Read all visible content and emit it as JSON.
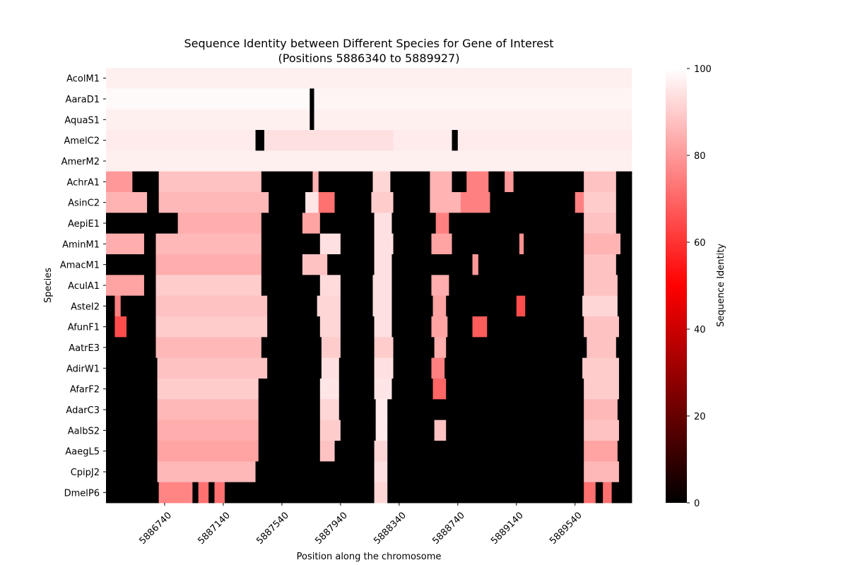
{
  "chart_data": {
    "type": "heatmap",
    "title_line1": "Sequence Identity between Different Species for Gene of Interest",
    "title_line2": "(Positions 5886340 to 5889927)",
    "xlabel": "Position along the chromosome",
    "ylabel": "Species",
    "colorbar_label": "Sequence Identity",
    "x_range": [
      5886340,
      5889927
    ],
    "x_ticks": [
      5886740,
      5887140,
      5887540,
      5887940,
      5888340,
      5888740,
      5889140,
      5889540
    ],
    "x_tick_labels": [
      "5886740",
      "5887140",
      "5887540",
      "5887940",
      "5888340",
      "5888740",
      "5889140",
      "5889540"
    ],
    "colorbar_range": [
      0,
      100
    ],
    "colorbar_ticks": [
      0,
      20,
      40,
      60,
      80,
      100
    ],
    "colorbar_tick_labels": [
      "0",
      "20",
      "40",
      "60",
      "80",
      "100"
    ],
    "colormap": [
      "#000000",
      "#ff0000",
      "#ffffff"
    ],
    "species": [
      "AcolM1",
      "AaraD1",
      "AquaS1",
      "AmelC2",
      "AmerM2",
      "AchrA1",
      "AsinC2",
      "AepiE1",
      "AminM1",
      "AmacM1",
      "AculA1",
      "AstеI2",
      "AfunF1",
      "AatrE3",
      "AdirW1",
      "AfarF2",
      "AdarC3",
      "AalbS2",
      "AaegL5",
      "CpipJ2",
      "DmelP6"
    ],
    "rows": [
      {
        "species": "AcolM1",
        "segments": [
          [
            5886340,
            5889927,
            97
          ]
        ]
      },
      {
        "species": "AaraD1",
        "segments": [
          [
            5886340,
            5887730,
            99
          ],
          [
            5887730,
            5887760,
            0
          ],
          [
            5887760,
            5889927,
            98
          ]
        ]
      },
      {
        "species": "AquaS1",
        "segments": [
          [
            5886340,
            5887730,
            97
          ],
          [
            5887730,
            5887760,
            0
          ],
          [
            5887760,
            5889927,
            97
          ]
        ]
      },
      {
        "species": "AmelC2",
        "segments": [
          [
            5886340,
            5887360,
            96
          ],
          [
            5886340,
            5886340,
            96
          ],
          [
            5887360,
            5887420,
            0
          ],
          [
            5887420,
            5888300,
            94
          ],
          [
            5888300,
            5888700,
            96
          ],
          [
            5888700,
            5888740,
            0
          ],
          [
            5888740,
            5889927,
            96
          ]
        ]
      },
      {
        "species": "AmerM2",
        "segments": [
          [
            5886340,
            5889927,
            97
          ]
        ]
      },
      {
        "species": "AchrA1",
        "segments": [
          [
            5886340,
            5886520,
            80
          ],
          [
            5886520,
            5886700,
            0
          ],
          [
            5886700,
            5887400,
            88
          ],
          [
            5887400,
            5887750,
            0
          ],
          [
            5887750,
            5887790,
            85
          ],
          [
            5887790,
            5888160,
            0
          ],
          [
            5888160,
            5888280,
            92
          ],
          [
            5888280,
            5888550,
            0
          ],
          [
            5888550,
            5888700,
            85
          ],
          [
            5888700,
            5888800,
            0
          ],
          [
            5888800,
            5888950,
            75
          ],
          [
            5888950,
            5889060,
            0
          ],
          [
            5889060,
            5889120,
            80
          ],
          [
            5889120,
            5889600,
            0
          ],
          [
            5889600,
            5889820,
            88
          ],
          [
            5889820,
            5889927,
            0
          ]
        ]
      },
      {
        "species": "AsinC2",
        "segments": [
          [
            5886340,
            5886620,
            85
          ],
          [
            5886620,
            5886700,
            0
          ],
          [
            5886700,
            5887450,
            86
          ],
          [
            5887450,
            5887700,
            0
          ],
          [
            5887700,
            5887790,
            95
          ],
          [
            5887790,
            5887900,
            72
          ],
          [
            5887900,
            5888150,
            0
          ],
          [
            5888150,
            5888300,
            90
          ],
          [
            5888300,
            5888550,
            0
          ],
          [
            5888550,
            5888760,
            85
          ],
          [
            5888760,
            5888960,
            75
          ],
          [
            5888960,
            5889540,
            0
          ],
          [
            5889540,
            5889600,
            75
          ],
          [
            5889600,
            5889820,
            90
          ],
          [
            5889820,
            5889927,
            0
          ]
        ]
      },
      {
        "species": "AepiE1",
        "segments": [
          [
            5886340,
            5886830,
            0
          ],
          [
            5886830,
            5887400,
            84
          ],
          [
            5887400,
            5887680,
            0
          ],
          [
            5887680,
            5887800,
            82
          ],
          [
            5887800,
            5888170,
            0
          ],
          [
            5888170,
            5888290,
            94
          ],
          [
            5888290,
            5888590,
            0
          ],
          [
            5888590,
            5888680,
            75
          ],
          [
            5888680,
            5889600,
            0
          ],
          [
            5889600,
            5889820,
            88
          ],
          [
            5889820,
            5889927,
            0
          ]
        ]
      },
      {
        "species": "AminM1",
        "segments": [
          [
            5886340,
            5886600,
            84
          ],
          [
            5886600,
            5886680,
            0
          ],
          [
            5886680,
            5887400,
            86
          ],
          [
            5887400,
            5887800,
            0
          ],
          [
            5887800,
            5887940,
            94
          ],
          [
            5887940,
            5888170,
            0
          ],
          [
            5888170,
            5888300,
            94
          ],
          [
            5888300,
            5888560,
            0
          ],
          [
            5888560,
            5888700,
            82
          ],
          [
            5888700,
            5889160,
            0
          ],
          [
            5889160,
            5889190,
            78
          ],
          [
            5889190,
            5889600,
            0
          ],
          [
            5889600,
            5889850,
            85
          ],
          [
            5889850,
            5889927,
            0
          ]
        ]
      },
      {
        "species": "AmacM1",
        "segments": [
          [
            5886340,
            5886680,
            0
          ],
          [
            5886680,
            5887400,
            84
          ],
          [
            5887400,
            5887680,
            0
          ],
          [
            5887680,
            5887850,
            88
          ],
          [
            5887850,
            5888170,
            0
          ],
          [
            5888170,
            5888290,
            94
          ],
          [
            5888290,
            5888840,
            0
          ],
          [
            5888840,
            5888880,
            80
          ],
          [
            5888880,
            5889600,
            0
          ],
          [
            5889600,
            5889820,
            88
          ],
          [
            5889820,
            5889927,
            0
          ]
        ]
      },
      {
        "species": "AculA1",
        "segments": [
          [
            5886340,
            5886600,
            82
          ],
          [
            5886600,
            5886680,
            0
          ],
          [
            5886680,
            5887400,
            90
          ],
          [
            5887400,
            5887800,
            0
          ],
          [
            5887800,
            5887940,
            93
          ],
          [
            5887940,
            5888160,
            0
          ],
          [
            5888160,
            5888290,
            94
          ],
          [
            5888290,
            5888560,
            0
          ],
          [
            5888560,
            5888680,
            84
          ],
          [
            5888680,
            5889600,
            0
          ],
          [
            5889600,
            5889830,
            88
          ],
          [
            5889830,
            5889927,
            0
          ]
        ]
      },
      {
        "species": "AstеI2",
        "segments": [
          [
            5886340,
            5886400,
            0
          ],
          [
            5886400,
            5886440,
            75
          ],
          [
            5886440,
            5886680,
            0
          ],
          [
            5886680,
            5887440,
            88
          ],
          [
            5887440,
            5887780,
            0
          ],
          [
            5887780,
            5887940,
            92
          ],
          [
            5887940,
            5888160,
            0
          ],
          [
            5888160,
            5888290,
            94
          ],
          [
            5888290,
            5888570,
            0
          ],
          [
            5888570,
            5888660,
            82
          ],
          [
            5888660,
            5889140,
            0
          ],
          [
            5889140,
            5889200,
            65
          ],
          [
            5889200,
            5889590,
            0
          ],
          [
            5889590,
            5889830,
            92
          ],
          [
            5889830,
            5889927,
            0
          ]
        ]
      },
      {
        "species": "AfunF1",
        "segments": [
          [
            5886340,
            5886400,
            0
          ],
          [
            5886400,
            5886480,
            65
          ],
          [
            5886480,
            5886680,
            0
          ],
          [
            5886680,
            5887440,
            90
          ],
          [
            5887440,
            5887800,
            0
          ],
          [
            5887800,
            5887940,
            92
          ],
          [
            5887940,
            5888170,
            0
          ],
          [
            5888170,
            5888290,
            94
          ],
          [
            5888290,
            5888560,
            0
          ],
          [
            5888560,
            5888670,
            82
          ],
          [
            5888670,
            5888840,
            0
          ],
          [
            5888840,
            5888940,
            68
          ],
          [
            5888940,
            5889600,
            0
          ],
          [
            5889600,
            5889840,
            88
          ],
          [
            5889840,
            5889927,
            0
          ]
        ]
      },
      {
        "species": "AatrE3",
        "segments": [
          [
            5886340,
            5886680,
            0
          ],
          [
            5886680,
            5887400,
            86
          ],
          [
            5887400,
            5887810,
            0
          ],
          [
            5887810,
            5887940,
            90
          ],
          [
            5887940,
            5888170,
            0
          ],
          [
            5888170,
            5888300,
            90
          ],
          [
            5888300,
            5888580,
            0
          ],
          [
            5888580,
            5888660,
            84
          ],
          [
            5888660,
            5889620,
            0
          ],
          [
            5889620,
            5889820,
            88
          ],
          [
            5889820,
            5889927,
            0
          ]
        ]
      },
      {
        "species": "AdirW1",
        "segments": [
          [
            5886340,
            5886690,
            0
          ],
          [
            5886690,
            5887440,
            88
          ],
          [
            5887440,
            5887810,
            0
          ],
          [
            5887810,
            5887930,
            94
          ],
          [
            5887930,
            5888170,
            0
          ],
          [
            5888170,
            5888300,
            94
          ],
          [
            5888300,
            5888560,
            0
          ],
          [
            5888560,
            5888650,
            75
          ],
          [
            5888650,
            5889590,
            0
          ],
          [
            5889590,
            5889840,
            90
          ],
          [
            5889840,
            5889927,
            0
          ]
        ]
      },
      {
        "species": "AfarF2",
        "segments": [
          [
            5886340,
            5886690,
            0
          ],
          [
            5886690,
            5887380,
            90
          ],
          [
            5887380,
            5887800,
            0
          ],
          [
            5887800,
            5887930,
            95
          ],
          [
            5887930,
            5888170,
            0
          ],
          [
            5888170,
            5888290,
            95
          ],
          [
            5888290,
            5888570,
            0
          ],
          [
            5888570,
            5888660,
            70
          ],
          [
            5888660,
            5889600,
            0
          ],
          [
            5889600,
            5889840,
            90
          ],
          [
            5889840,
            5889927,
            0
          ]
        ]
      },
      {
        "species": "AdarC3",
        "segments": [
          [
            5886340,
            5886690,
            0
          ],
          [
            5886690,
            5887380,
            86
          ],
          [
            5887380,
            5887800,
            0
          ],
          [
            5887800,
            5887930,
            92
          ],
          [
            5887930,
            5888180,
            0
          ],
          [
            5888180,
            5888260,
            96
          ],
          [
            5888260,
            5889600,
            0
          ],
          [
            5889600,
            5889830,
            86
          ],
          [
            5889830,
            5889927,
            0
          ]
        ]
      },
      {
        "species": "AalbS2",
        "segments": [
          [
            5886340,
            5886690,
            0
          ],
          [
            5886690,
            5887380,
            84
          ],
          [
            5887380,
            5887800,
            0
          ],
          [
            5887800,
            5887940,
            90
          ],
          [
            5887940,
            5888180,
            0
          ],
          [
            5888180,
            5888260,
            96
          ],
          [
            5888260,
            5888580,
            0
          ],
          [
            5888580,
            5888660,
            88
          ],
          [
            5888660,
            5889600,
            0
          ],
          [
            5889600,
            5889840,
            88
          ],
          [
            5889840,
            5889927,
            0
          ]
        ]
      },
      {
        "species": "AaegL5",
        "segments": [
          [
            5886340,
            5886690,
            0
          ],
          [
            5886690,
            5887380,
            82
          ],
          [
            5887380,
            5887800,
            0
          ],
          [
            5887800,
            5887900,
            88
          ],
          [
            5887900,
            5888170,
            0
          ],
          [
            5888170,
            5888260,
            92
          ],
          [
            5888260,
            5889600,
            0
          ],
          [
            5889600,
            5889830,
            82
          ],
          [
            5889830,
            5889927,
            0
          ]
        ]
      },
      {
        "species": "CpipJ2",
        "segments": [
          [
            5886340,
            5886690,
            0
          ],
          [
            5886690,
            5887360,
            86
          ],
          [
            5887360,
            5888170,
            0
          ],
          [
            5888170,
            5888260,
            94
          ],
          [
            5888260,
            5889600,
            0
          ],
          [
            5889600,
            5889840,
            86
          ],
          [
            5889840,
            5889927,
            0
          ]
        ]
      },
      {
        "species": "DmelP6",
        "segments": [
          [
            5886340,
            5886700,
            0
          ],
          [
            5886700,
            5886930,
            76
          ],
          [
            5886930,
            5886970,
            0
          ],
          [
            5886970,
            5887040,
            72
          ],
          [
            5887040,
            5887080,
            0
          ],
          [
            5887080,
            5887150,
            72
          ],
          [
            5887150,
            5888170,
            0
          ],
          [
            5888170,
            5888260,
            92
          ],
          [
            5888260,
            5889600,
            0
          ],
          [
            5889600,
            5889680,
            72
          ],
          [
            5889680,
            5889730,
            0
          ],
          [
            5889730,
            5889790,
            72
          ],
          [
            5889790,
            5889927,
            0
          ]
        ]
      }
    ]
  }
}
